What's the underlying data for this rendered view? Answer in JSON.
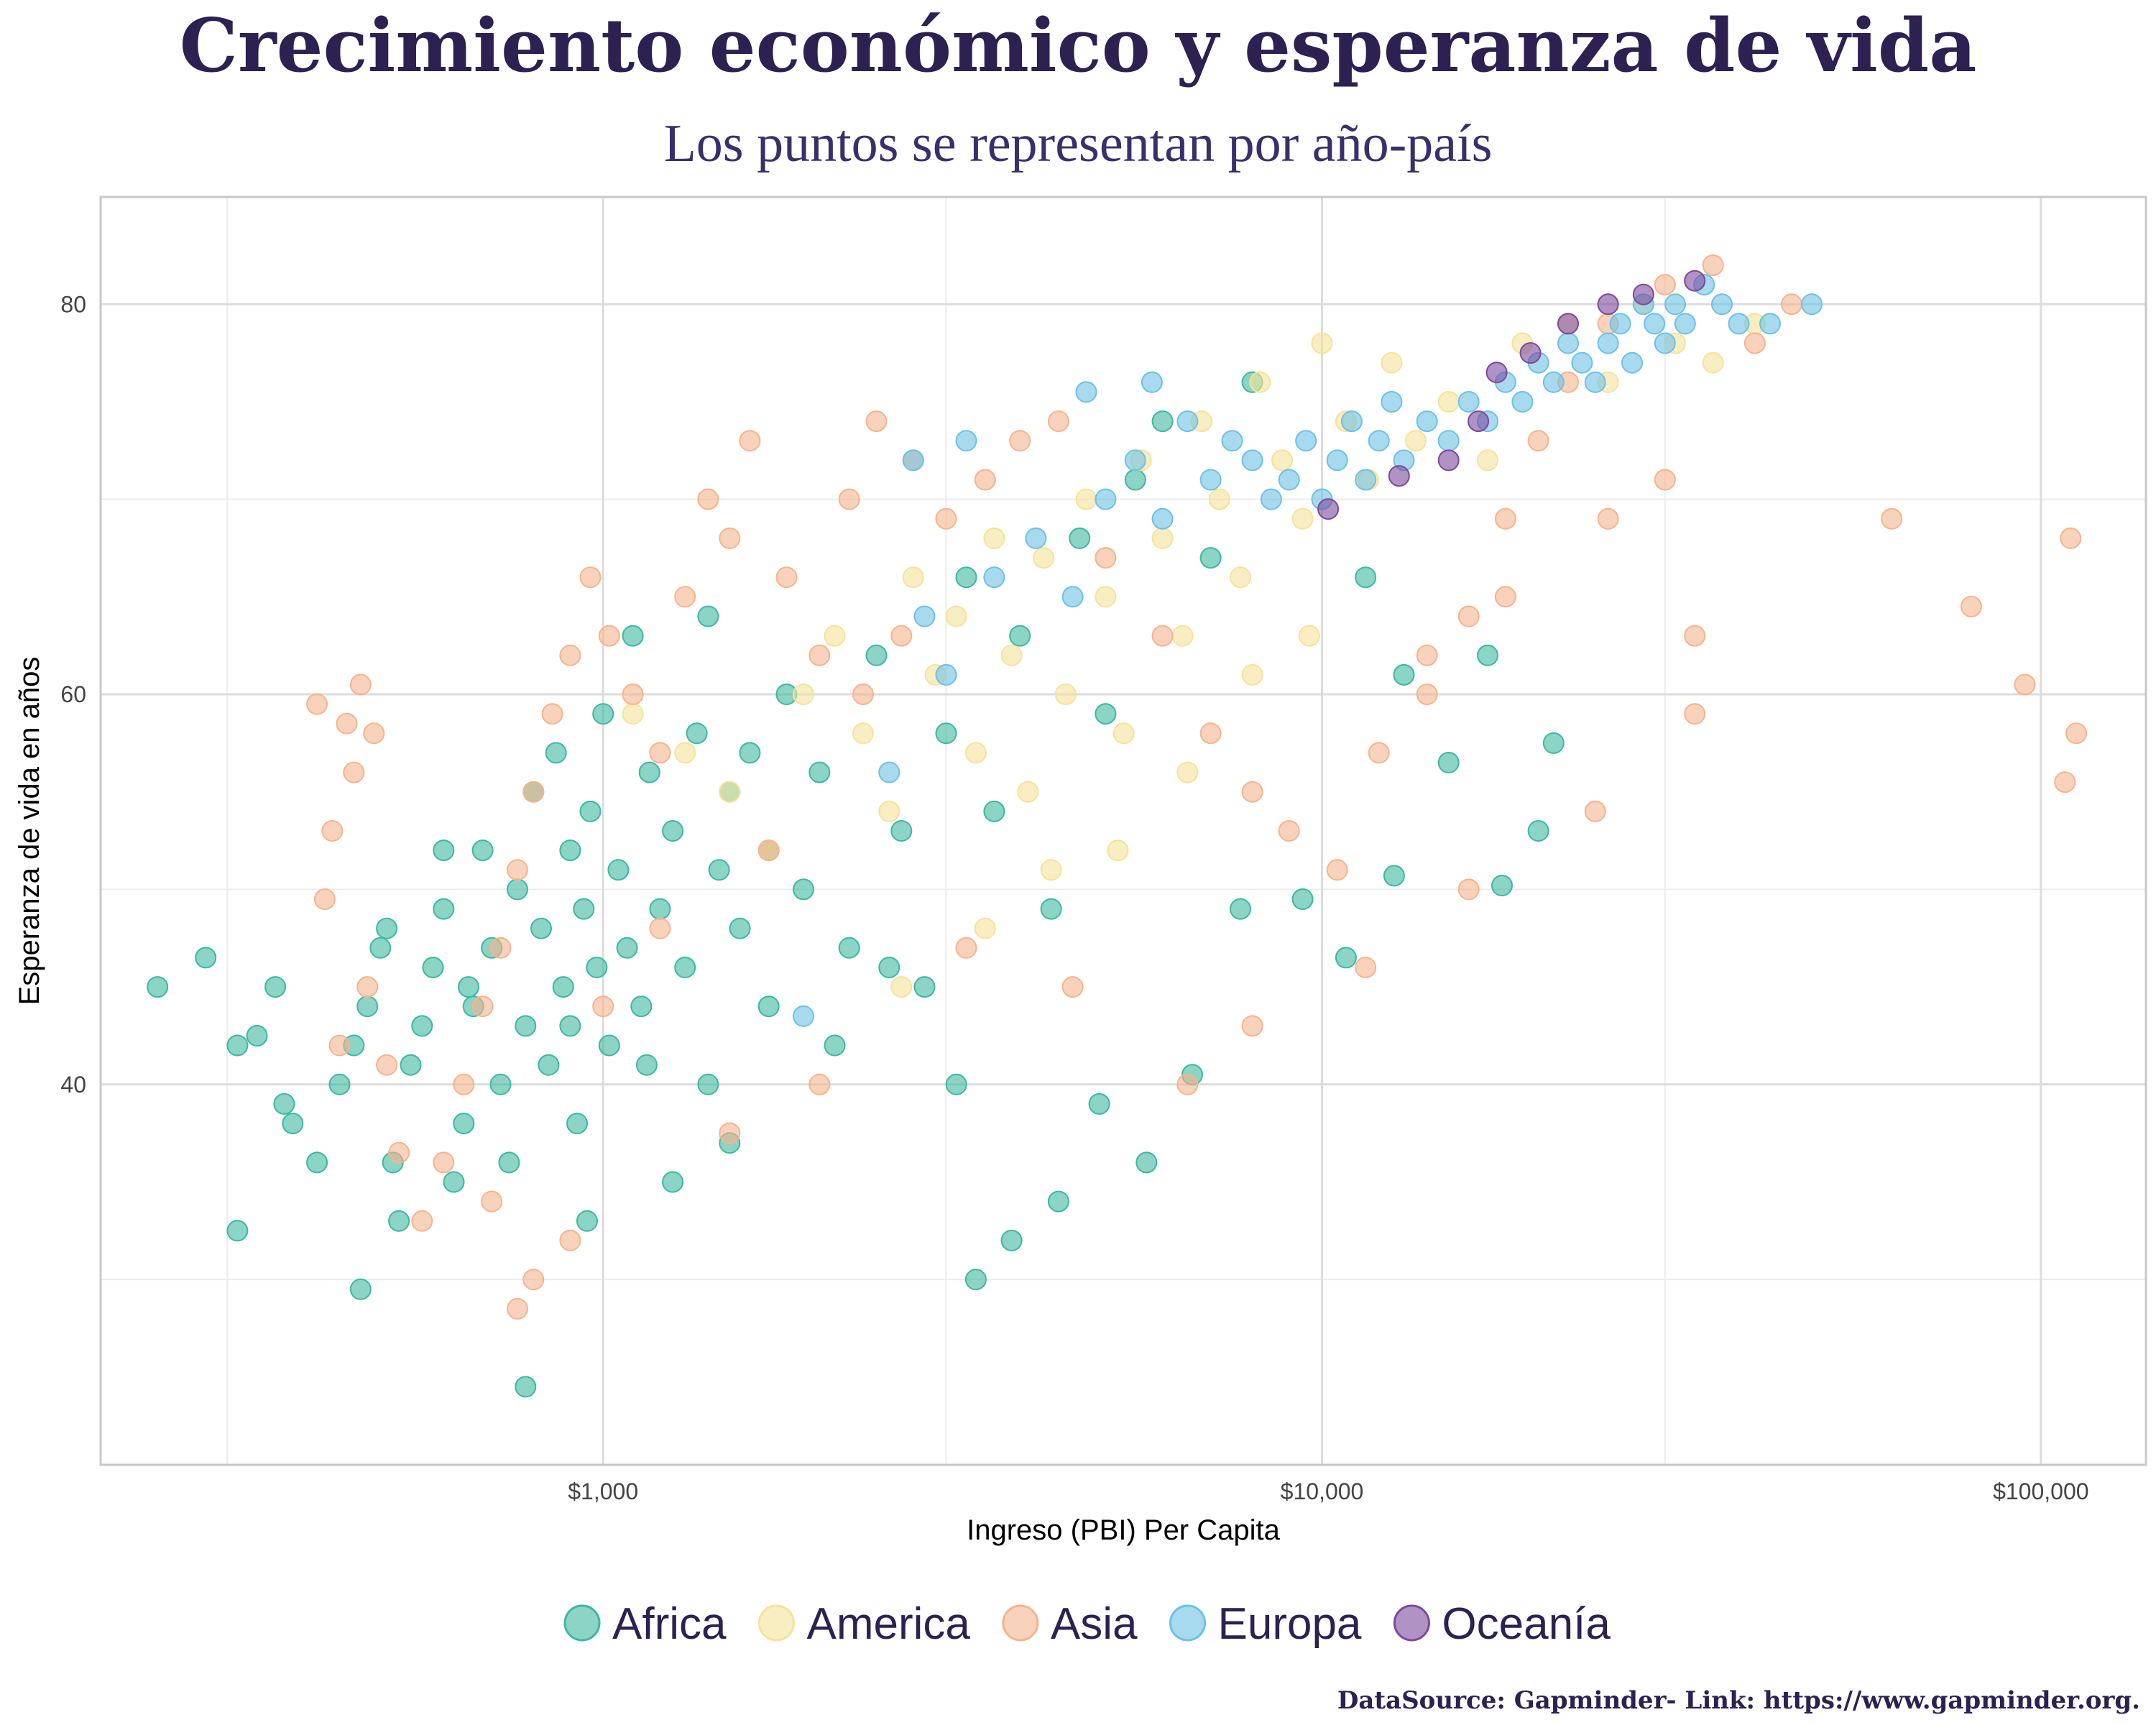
{
  "chart_data": {
    "type": "scatter",
    "title": "Crecimiento económico y esperanza de vida",
    "subtitle": "Los puntos se representan por año-país",
    "xlabel": "Ingreso (PBI) Per Capita",
    "ylabel": "Esperanza de vida en años",
    "caption": "DataSource: Gapminder- Link: https://www.gapminder.org.",
    "x_scale": "log",
    "xlim": [
      200,
      140000
    ],
    "ylim": [
      20.5,
      85.5
    ],
    "x_ticks": [
      {
        "value": 1000,
        "label": "$1,000"
      },
      {
        "value": 10000,
        "label": "$10,000"
      },
      {
        "value": 100000,
        "label": "$100,000"
      }
    ],
    "y_ticks": [
      {
        "value": 40,
        "label": "40"
      },
      {
        "value": 60,
        "label": "60"
      },
      {
        "value": 80,
        "label": "80"
      }
    ],
    "grid": true,
    "legend_position": "bottom",
    "series": [
      {
        "name": "Africa",
        "color": "#3db8a0",
        "points": [
          [
            240,
            45
          ],
          [
            280,
            46.5
          ],
          [
            310,
            42
          ],
          [
            330,
            42.5
          ],
          [
            350,
            45
          ],
          [
            360,
            39
          ],
          [
            370,
            38
          ],
          [
            400,
            36
          ],
          [
            430,
            40
          ],
          [
            450,
            42
          ],
          [
            470,
            44
          ],
          [
            490,
            47
          ],
          [
            500,
            48
          ],
          [
            510,
            36
          ],
          [
            520,
            33
          ],
          [
            540,
            41
          ],
          [
            560,
            43
          ],
          [
            580,
            46
          ],
          [
            600,
            49
          ],
          [
            620,
            35
          ],
          [
            640,
            38
          ],
          [
            660,
            44
          ],
          [
            680,
            52
          ],
          [
            700,
            47
          ],
          [
            720,
            40
          ],
          [
            740,
            36
          ],
          [
            760,
            50
          ],
          [
            780,
            43
          ],
          [
            800,
            55
          ],
          [
            820,
            48
          ],
          [
            840,
            41
          ],
          [
            860,
            57
          ],
          [
            880,
            45
          ],
          [
            900,
            52
          ],
          [
            920,
            38
          ],
          [
            940,
            49
          ],
          [
            960,
            54
          ],
          [
            980,
            46
          ],
          [
            1000,
            59
          ],
          [
            1020,
            42
          ],
          [
            1050,
            51
          ],
          [
            1080,
            47
          ],
          [
            1100,
            63
          ],
          [
            1130,
            44
          ],
          [
            1160,
            56
          ],
          [
            1200,
            49
          ],
          [
            1250,
            53
          ],
          [
            1300,
            46
          ],
          [
            1350,
            58
          ],
          [
            1400,
            64
          ],
          [
            1450,
            51
          ],
          [
            1500,
            55
          ],
          [
            1550,
            48
          ],
          [
            1600,
            57
          ],
          [
            1700,
            52
          ],
          [
            1800,
            60
          ],
          [
            1900,
            50
          ],
          [
            2000,
            56
          ],
          [
            2200,
            47
          ],
          [
            2400,
            62
          ],
          [
            2600,
            53
          ],
          [
            2800,
            45
          ],
          [
            3000,
            58
          ],
          [
            3200,
            66
          ],
          [
            3500,
            54
          ],
          [
            3800,
            63
          ],
          [
            4200,
            49
          ],
          [
            4600,
            68
          ],
          [
            5000,
            59
          ],
          [
            5500,
            71
          ],
          [
            6000,
            74
          ],
          [
            7000,
            67
          ],
          [
            8000,
            76
          ],
          [
            3300,
            30
          ],
          [
            780,
            24.5
          ],
          [
            460,
            29.5
          ],
          [
            310,
            32.5
          ],
          [
            3700,
            32
          ],
          [
            4300,
            34
          ],
          [
            4900,
            39
          ],
          [
            5700,
            36
          ],
          [
            6600,
            40.5
          ],
          [
            7700,
            49
          ],
          [
            9400,
            49.5
          ],
          [
            10800,
            46.5
          ],
          [
            12600,
            50.7
          ],
          [
            15000,
            56.5
          ],
          [
            17800,
            50.2
          ],
          [
            20000,
            53
          ],
          [
            21000,
            57.5
          ],
          [
            17000,
            62
          ],
          [
            13000,
            61
          ],
          [
            11500,
            66
          ],
          [
            600,
            52
          ],
          [
            650,
            45
          ],
          [
            900,
            43
          ],
          [
            1150,
            41
          ],
          [
            1400,
            40
          ],
          [
            1700,
            44
          ],
          [
            2100,
            42
          ],
          [
            2500,
            46
          ],
          [
            3100,
            40
          ],
          [
            950,
            33
          ],
          [
            1250,
            35
          ],
          [
            1500,
            37
          ]
        ]
      },
      {
        "name": "America",
        "color": "#f5e39a",
        "points": [
          [
            1100,
            59
          ],
          [
            1300,
            57
          ],
          [
            1500,
            55
          ],
          [
            1700,
            52
          ],
          [
            1900,
            60
          ],
          [
            2100,
            63
          ],
          [
            2300,
            58
          ],
          [
            2500,
            54
          ],
          [
            2700,
            66
          ],
          [
            2900,
            61
          ],
          [
            3100,
            64
          ],
          [
            3300,
            57
          ],
          [
            3500,
            68
          ],
          [
            3700,
            62
          ],
          [
            3900,
            55
          ],
          [
            4100,
            67
          ],
          [
            4400,
            60
          ],
          [
            4700,
            70
          ],
          [
            5000,
            65
          ],
          [
            5300,
            58
          ],
          [
            5600,
            72
          ],
          [
            6000,
            68
          ],
          [
            6400,
            63
          ],
          [
            6800,
            74
          ],
          [
            7200,
            70
          ],
          [
            7700,
            66
          ],
          [
            8200,
            76
          ],
          [
            8800,
            72
          ],
          [
            9400,
            69
          ],
          [
            10000,
            78
          ],
          [
            10800,
            74
          ],
          [
            11600,
            71
          ],
          [
            12500,
            77
          ],
          [
            13500,
            73
          ],
          [
            15000,
            75
          ],
          [
            17000,
            72
          ],
          [
            19000,
            78
          ],
          [
            22000,
            79
          ],
          [
            25000,
            76
          ],
          [
            28000,
            80
          ],
          [
            31000,
            78
          ],
          [
            35000,
            77
          ],
          [
            40000,
            79
          ],
          [
            2600,
            45
          ],
          [
            3400,
            48
          ],
          [
            4200,
            51
          ],
          [
            5200,
            52
          ],
          [
            6500,
            56
          ],
          [
            8000,
            61
          ],
          [
            9600,
            63
          ]
        ]
      },
      {
        "name": "Asia",
        "color": "#f5b48e",
        "points": [
          [
            400,
            59.5
          ],
          [
            440,
            58.5
          ],
          [
            460,
            60.5
          ],
          [
            480,
            58
          ],
          [
            420,
            53
          ],
          [
            450,
            56
          ],
          [
            410,
            49.5
          ],
          [
            430,
            42
          ],
          [
            470,
            45
          ],
          [
            500,
            41
          ],
          [
            520,
            36.5
          ],
          [
            560,
            33
          ],
          [
            600,
            36
          ],
          [
            640,
            40
          ],
          [
            680,
            44
          ],
          [
            720,
            47
          ],
          [
            760,
            51
          ],
          [
            800,
            55
          ],
          [
            850,
            59
          ],
          [
            900,
            62
          ],
          [
            960,
            66
          ],
          [
            1020,
            63
          ],
          [
            1100,
            60
          ],
          [
            1200,
            57
          ],
          [
            1300,
            65
          ],
          [
            1400,
            70
          ],
          [
            1500,
            68
          ],
          [
            1600,
            73
          ],
          [
            1800,
            66
          ],
          [
            2000,
            62
          ],
          [
            2200,
            70
          ],
          [
            2400,
            74
          ],
          [
            2700,
            72
          ],
          [
            3000,
            69
          ],
          [
            3400,
            71
          ],
          [
            3800,
            73
          ],
          [
            4300,
            74
          ],
          [
            5000,
            67
          ],
          [
            6000,
            63
          ],
          [
            7000,
            58
          ],
          [
            8000,
            55
          ],
          [
            9000,
            53
          ],
          [
            10500,
            51
          ],
          [
            12000,
            57
          ],
          [
            14000,
            60
          ],
          [
            16000,
            64
          ],
          [
            18000,
            69
          ],
          [
            20000,
            73
          ],
          [
            22000,
            76
          ],
          [
            25000,
            79
          ],
          [
            30000,
            81
          ],
          [
            35000,
            82
          ],
          [
            40000,
            78
          ],
          [
            45000,
            80
          ],
          [
            25000,
            69
          ],
          [
            30000,
            71
          ],
          [
            33000,
            63
          ],
          [
            33000,
            59
          ],
          [
            62000,
            69
          ],
          [
            80000,
            64.5
          ],
          [
            95000,
            60.5
          ],
          [
            108000,
            55.5
          ],
          [
            112000,
            58
          ],
          [
            110000,
            68
          ],
          [
            14000,
            62
          ],
          [
            18000,
            65
          ],
          [
            16000,
            50
          ],
          [
            24000,
            54
          ],
          [
            11500,
            46
          ],
          [
            8000,
            43
          ],
          [
            6500,
            40
          ],
          [
            2000,
            40
          ],
          [
            1500,
            37.5
          ],
          [
            800,
            30
          ],
          [
            760,
            28.5
          ],
          [
            700,
            34
          ],
          [
            900,
            32
          ],
          [
            2300,
            60
          ],
          [
            2600,
            63
          ],
          [
            1700,
            52
          ],
          [
            1200,
            48
          ],
          [
            1000,
            44
          ],
          [
            4500,
            45
          ],
          [
            3200,
            47
          ]
        ]
      },
      {
        "name": "Europa",
        "color": "#6ec1e4",
        "points": [
          [
            1900,
            43.5
          ],
          [
            2500,
            56
          ],
          [
            2800,
            64
          ],
          [
            3000,
            61
          ],
          [
            3500,
            66
          ],
          [
            4000,
            68
          ],
          [
            4500,
            65
          ],
          [
            5000,
            70
          ],
          [
            5500,
            72
          ],
          [
            6000,
            69
          ],
          [
            6500,
            74
          ],
          [
            7000,
            71
          ],
          [
            7500,
            73
          ],
          [
            8000,
            72
          ],
          [
            8500,
            70
          ],
          [
            9000,
            71
          ],
          [
            9500,
            73
          ],
          [
            10000,
            70
          ],
          [
            10500,
            72
          ],
          [
            11000,
            74
          ],
          [
            11500,
            71
          ],
          [
            12000,
            73
          ],
          [
            12500,
            75
          ],
          [
            13000,
            72
          ],
          [
            14000,
            74
          ],
          [
            15000,
            73
          ],
          [
            16000,
            75
          ],
          [
            17000,
            74
          ],
          [
            18000,
            76
          ],
          [
            19000,
            75
          ],
          [
            20000,
            77
          ],
          [
            21000,
            76
          ],
          [
            22000,
            78
          ],
          [
            23000,
            77
          ],
          [
            24000,
            76
          ],
          [
            25000,
            78
          ],
          [
            26000,
            79
          ],
          [
            27000,
            77
          ],
          [
            28000,
            80
          ],
          [
            29000,
            79
          ],
          [
            30000,
            78
          ],
          [
            31000,
            80
          ],
          [
            32000,
            79
          ],
          [
            34000,
            81
          ],
          [
            36000,
            80
          ],
          [
            38000,
            79
          ],
          [
            42000,
            79
          ],
          [
            48000,
            80
          ],
          [
            2700,
            72
          ],
          [
            4700,
            75.5
          ],
          [
            5800,
            76
          ],
          [
            3200,
            73
          ]
        ]
      },
      {
        "name": "Oceanía",
        "color": "#7b4a9c",
        "points": [
          [
            10200,
            69.5
          ],
          [
            12800,
            71.2
          ],
          [
            15000,
            72
          ],
          [
            16500,
            74
          ],
          [
            17500,
            76.5
          ],
          [
            19500,
            77.5
          ],
          [
            22000,
            79
          ],
          [
            25000,
            80
          ],
          [
            28000,
            80.5
          ],
          [
            33000,
            81.2
          ]
        ]
      }
    ]
  }
}
